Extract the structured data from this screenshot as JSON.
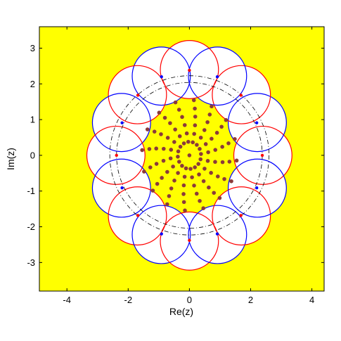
{
  "chart_data": {
    "type": "scatter",
    "title": "",
    "xlabel": "Re(z)",
    "ylabel": "Im(z)",
    "xlim": [
      -4.9,
      4.4
    ],
    "ylim": [
      -3.8,
      3.6
    ],
    "xticks": [
      -4,
      -2,
      0,
      2,
      4
    ],
    "yticks": [
      -3,
      -2,
      -1,
      0,
      1,
      2,
      3
    ],
    "background_color": "#ffff00",
    "grid": false,
    "legend": "none",
    "circles": {
      "count": 16,
      "center_radius": 2.4,
      "circle_radius": 0.95,
      "color_alternation": [
        "#ff0000",
        "#0000ff"
      ],
      "fill": "#ffffff"
    },
    "reference_circles": {
      "radii": [
        2.38,
        2.6
      ],
      "style": "dash-dot",
      "color": "#000000"
    },
    "points": {
      "color": "#8b3a3a",
      "rays": 16,
      "radii": [
        0.38,
        0.62,
        0.86,
        1.1,
        1.32,
        1.55
      ],
      "center": [
        0,
        0
      ]
    },
    "tangent_points": {
      "radius": 2.38,
      "color_red": "#ff0000",
      "color_blue": "#0000ff"
    }
  }
}
